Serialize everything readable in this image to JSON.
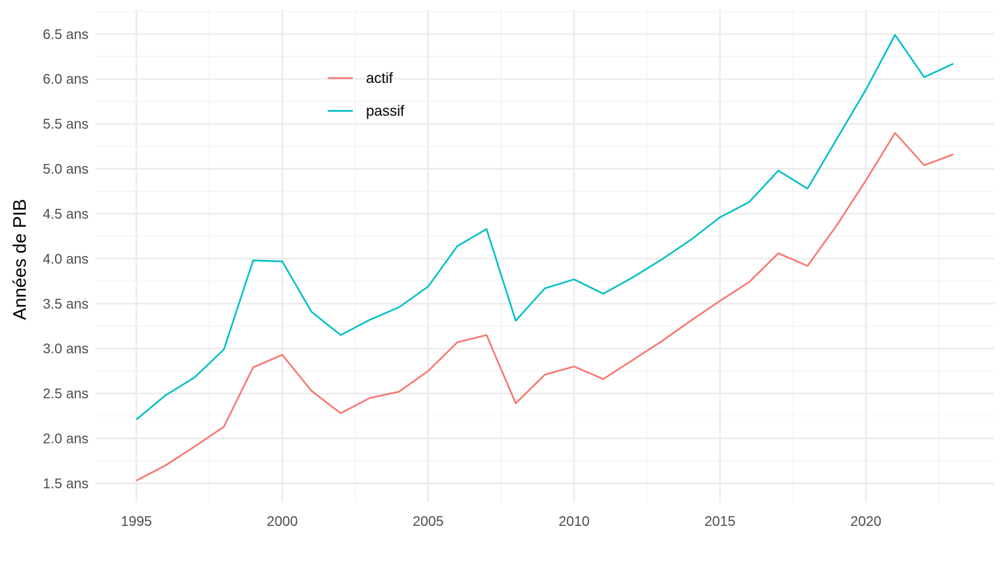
{
  "chart_data": {
    "type": "line",
    "title": "",
    "xlabel": "",
    "ylabel": "Années de PIB",
    "x": [
      1995,
      1996,
      1997,
      1998,
      1999,
      2000,
      2001,
      2002,
      2003,
      2004,
      2005,
      2006,
      2007,
      2008,
      2009,
      2010,
      2011,
      2012,
      2013,
      2014,
      2015,
      2016,
      2017,
      2018,
      2019,
      2020,
      2021,
      2022,
      2023
    ],
    "series": [
      {
        "name": "actif",
        "color": "#F8766D",
        "values": [
          1.53,
          1.7,
          1.91,
          2.13,
          2.79,
          2.93,
          2.53,
          2.28,
          2.45,
          2.52,
          2.75,
          3.07,
          3.15,
          2.39,
          2.71,
          2.8,
          2.66,
          2.87,
          3.08,
          3.31,
          3.53,
          3.74,
          4.06,
          3.92,
          4.37,
          4.87,
          5.4,
          5.04,
          5.16
        ]
      },
      {
        "name": "passif",
        "color": "#00BFC4",
        "values": [
          2.21,
          2.48,
          2.68,
          2.99,
          3.98,
          3.97,
          3.41,
          3.15,
          3.32,
          3.46,
          3.69,
          4.14,
          4.33,
          3.31,
          3.67,
          3.77,
          3.61,
          3.79,
          3.99,
          4.21,
          4.46,
          4.63,
          4.98,
          4.78,
          5.33,
          5.88,
          6.49,
          6.02,
          6.17
        ]
      }
    ],
    "xlim": [
      1993.6,
      2024.4
    ],
    "ylim": [
      1.29,
      6.77
    ],
    "x_ticks": [
      1995,
      2000,
      2005,
      2010,
      2015,
      2020
    ],
    "x_tick_labels": [
      "1995",
      "2000",
      "2005",
      "2010",
      "2015",
      "2020"
    ],
    "y_ticks": [
      1.5,
      2.0,
      2.5,
      3.0,
      3.5,
      4.0,
      4.5,
      5.0,
      5.5,
      6.0,
      6.5
    ],
    "y_tick_labels": [
      "1.5 ans",
      "2.0 ans",
      "2.5 ans",
      "3.0 ans",
      "3.5 ans",
      "4.0 ans",
      "4.5 ans",
      "5.0 ans",
      "5.5 ans",
      "6.0 ans",
      "6.5 ans"
    ],
    "grid": true,
    "legend": "inside top-left"
  }
}
